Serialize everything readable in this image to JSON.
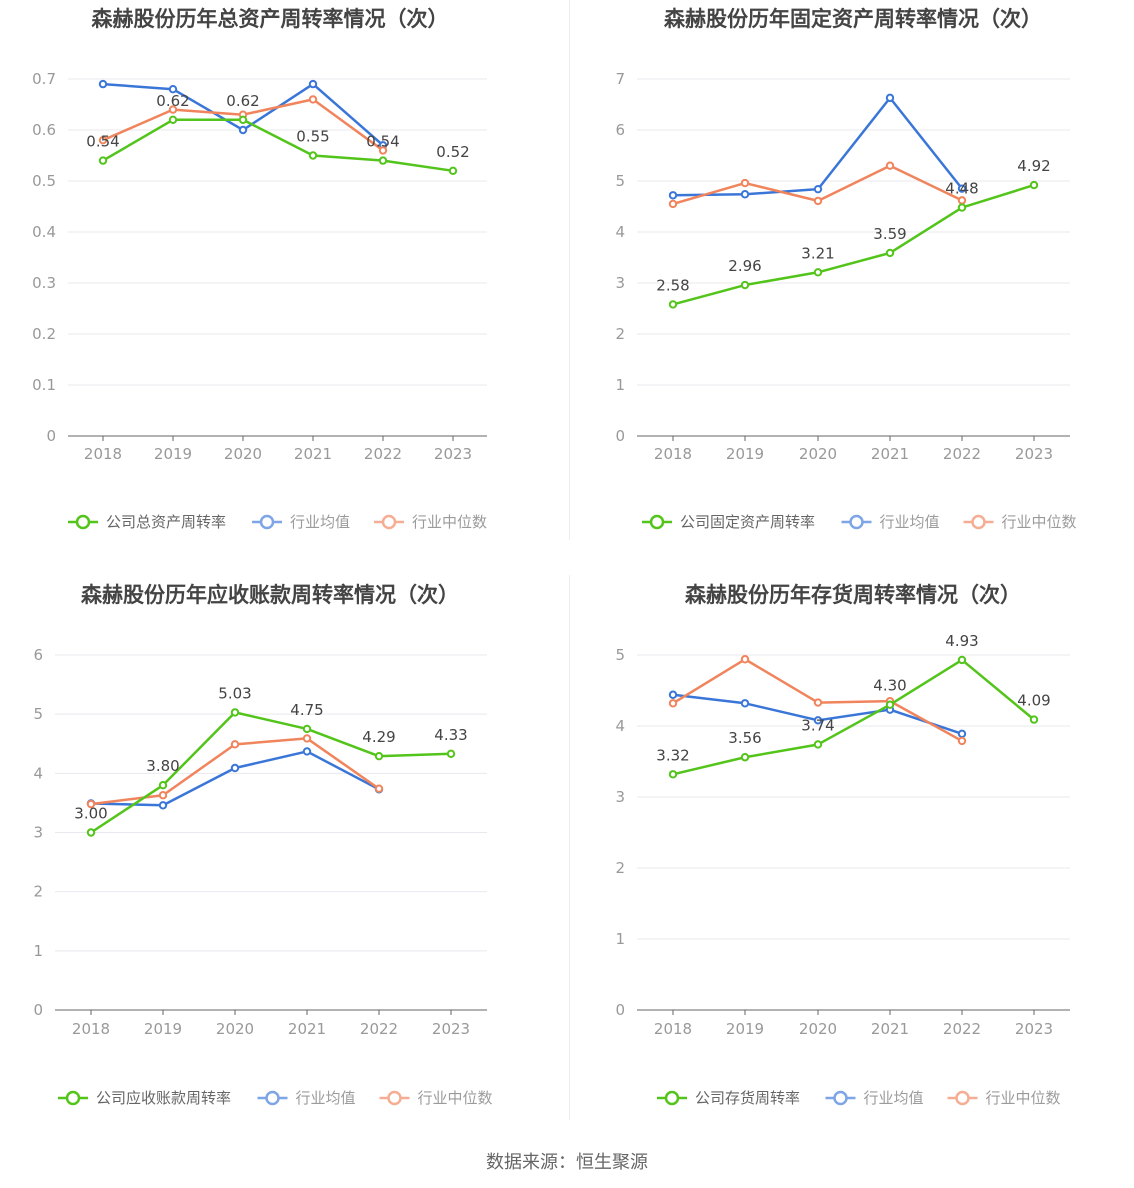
{
  "footer": "数据来源：恒生聚源",
  "colors": {
    "company": "#52c41a",
    "average": "#3a76d8",
    "median": "#f0845c",
    "grid": "#e8e8ef",
    "axis": "#666666"
  },
  "chart_data": [
    {
      "type": "line",
      "title": "森赫股份历年总资产周转率情况（次）",
      "categories": [
        "2018",
        "2019",
        "2020",
        "2021",
        "2022",
        "2023"
      ],
      "ylim": [
        0,
        0.7
      ],
      "yticks": [
        "0",
        "0.1",
        "0.2",
        "0.3",
        "0.4",
        "0.5",
        "0.6",
        "0.7"
      ],
      "legend_position": "bottom",
      "series": [
        {
          "name": "公司总资产周转率",
          "key": "company",
          "values": [
            0.54,
            0.62,
            0.62,
            0.55,
            0.54,
            0.52
          ],
          "labels": [
            "0.54",
            "0.62",
            "0.62",
            "0.55",
            "0.54",
            "0.52"
          ]
        },
        {
          "name": "行业均值",
          "key": "average",
          "values": [
            0.69,
            0.68,
            0.6,
            0.69,
            0.57,
            null
          ]
        },
        {
          "name": "行业中位数",
          "key": "median",
          "values": [
            0.58,
            0.64,
            0.63,
            0.66,
            0.56,
            null
          ]
        }
      ]
    },
    {
      "type": "line",
      "title": "森赫股份历年固定资产周转率情况（次）",
      "categories": [
        "2018",
        "2019",
        "2020",
        "2021",
        "2022",
        "2023"
      ],
      "ylim": [
        0,
        7
      ],
      "yticks": [
        "0",
        "1",
        "2",
        "3",
        "4",
        "5",
        "6",
        "7"
      ],
      "legend_position": "bottom",
      "series": [
        {
          "name": "公司固定资产周转率",
          "key": "company",
          "values": [
            2.58,
            2.96,
            3.21,
            3.59,
            4.48,
            4.92
          ],
          "labels": [
            "2.58",
            "2.96",
            "3.21",
            "3.59",
            "4.48",
            "4.92"
          ]
        },
        {
          "name": "行业均值",
          "key": "average",
          "values": [
            4.72,
            4.74,
            4.84,
            6.63,
            4.85,
            null
          ]
        },
        {
          "name": "行业中位数",
          "key": "median",
          "values": [
            4.55,
            4.96,
            4.61,
            5.3,
            4.62,
            null
          ]
        }
      ]
    },
    {
      "type": "line",
      "title": "森赫股份历年应收账款周转率情况（次）",
      "categories": [
        "2018",
        "2019",
        "2020",
        "2021",
        "2022",
        "2023"
      ],
      "ylim": [
        0,
        6
      ],
      "yticks": [
        "0",
        "1",
        "2",
        "3",
        "4",
        "5",
        "6"
      ],
      "legend_position": "bottom",
      "series": [
        {
          "name": "公司应收账款周转率",
          "key": "company",
          "values": [
            3.0,
            3.8,
            5.03,
            4.75,
            4.29,
            4.33
          ],
          "labels": [
            "3.00",
            "3.80",
            "5.03",
            "4.75",
            "4.29",
            "4.33"
          ]
        },
        {
          "name": "行业均值",
          "key": "average",
          "values": [
            3.49,
            3.46,
            4.09,
            4.37,
            3.73,
            null
          ]
        },
        {
          "name": "行业中位数",
          "key": "median",
          "values": [
            3.48,
            3.63,
            4.49,
            4.59,
            3.74,
            null
          ]
        }
      ]
    },
    {
      "type": "line",
      "title": "森赫股份历年存货周转率情况（次）",
      "categories": [
        "2018",
        "2019",
        "2020",
        "2021",
        "2022",
        "2023"
      ],
      "ylim": [
        0,
        5
      ],
      "yticks": [
        "0",
        "1",
        "2",
        "3",
        "4",
        "5"
      ],
      "legend_position": "bottom",
      "series": [
        {
          "name": "公司存货周转率",
          "key": "company",
          "values": [
            3.32,
            3.56,
            3.74,
            4.3,
            4.93,
            4.09
          ],
          "labels": [
            "3.32",
            "3.56",
            "3.74",
            "4.30",
            "4.93",
            "4.09"
          ]
        },
        {
          "name": "行业均值",
          "key": "average",
          "values": [
            4.44,
            4.32,
            4.08,
            4.23,
            3.89,
            null
          ]
        },
        {
          "name": "行业中位数",
          "key": "median",
          "values": [
            4.32,
            4.94,
            4.33,
            4.35,
            3.79,
            null
          ]
        }
      ]
    }
  ]
}
